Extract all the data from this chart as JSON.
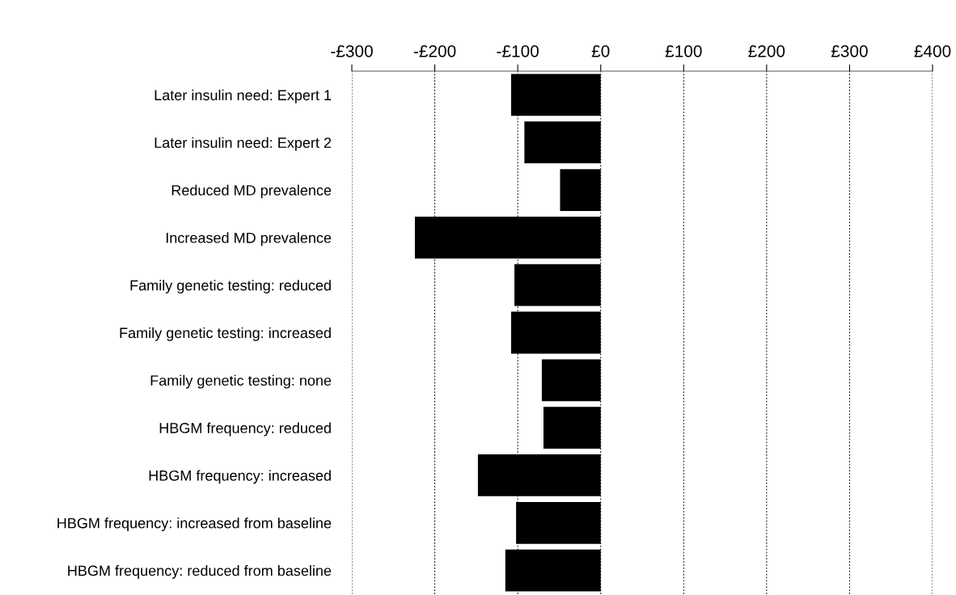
{
  "chart_data": {
    "type": "bar",
    "orientation": "horizontal",
    "categories": [
      "Later insulin need: Expert 1",
      "Later insulin need: Expert 2",
      "Reduced MD prevalence",
      "Increased MD prevalence",
      "Family genetic testing: reduced",
      "Family genetic testing: increased",
      "Family genetic testing: none",
      "HBGM frequency: reduced",
      "HBGM frequency: increased",
      "HBGM frequency: increased from baseline",
      "HBGM frequency: reduced from baseline"
    ],
    "values": [
      -108,
      -92,
      -49,
      -224,
      -104,
      -108,
      -71,
      -69,
      -148,
      -102,
      -115
    ],
    "color": "#000000",
    "xlim": [
      -300,
      400
    ],
    "xticks": [
      {
        "value": -300,
        "label": "-£300"
      },
      {
        "value": -200,
        "label": "-£200"
      },
      {
        "value": -100,
        "label": "-£100"
      },
      {
        "value": 0,
        "label": "£0"
      },
      {
        "value": 100,
        "label": "£100"
      },
      {
        "value": 200,
        "label": "£200"
      },
      {
        "value": 300,
        "label": "£300"
      },
      {
        "value": 400,
        "label": "£400"
      }
    ],
    "grid": "x"
  }
}
